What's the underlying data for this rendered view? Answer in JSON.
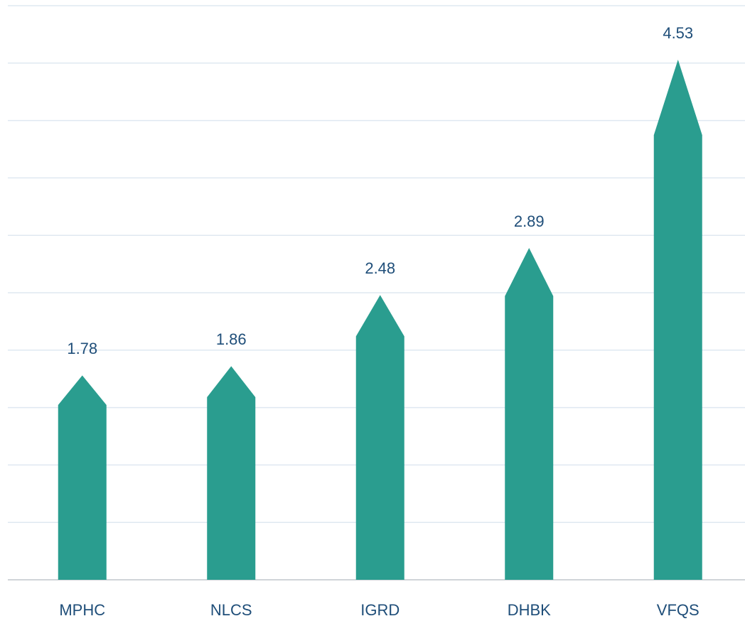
{
  "chart_data": {
    "type": "bar",
    "categories": [
      "MPHC",
      "NLCS",
      "IGRD",
      "DHBK",
      "VFQS"
    ],
    "values": [
      1.78,
      1.86,
      2.48,
      2.89,
      4.53
    ],
    "color": "#2a9d8f",
    "ylim": [
      0,
      5
    ],
    "yticks": [
      0,
      0.5,
      1,
      1.5,
      2,
      2.5,
      3,
      3.5,
      4,
      4.5,
      5
    ],
    "grid": true
  }
}
